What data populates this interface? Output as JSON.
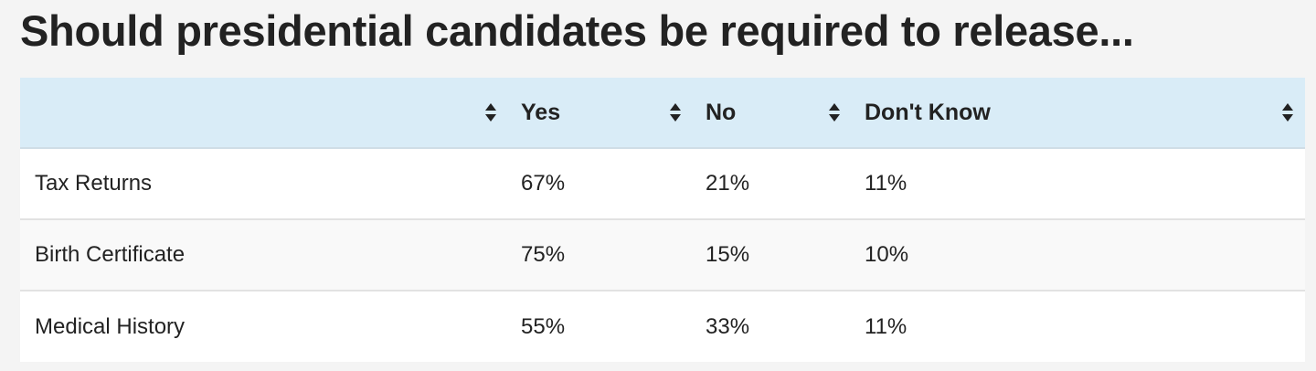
{
  "title": "Should presidential candidates be required to release...",
  "table": {
    "headers": [
      "",
      "Yes",
      "No",
      "Don't Know"
    ],
    "sort_icon": "sort-up-down-icon",
    "rows": [
      {
        "label": "Tax Returns",
        "yes": "67%",
        "no": "21%",
        "dont_know": "11%"
      },
      {
        "label": "Birth Certificate",
        "yes": "75%",
        "no": "15%",
        "dont_know": "10%"
      },
      {
        "label": "Medical History",
        "yes": "55%",
        "no": "33%",
        "dont_know": "11%"
      }
    ]
  },
  "colors": {
    "header_bg": "#d9ecf7",
    "page_bg": "#f4f4f4",
    "text": "#222222"
  }
}
